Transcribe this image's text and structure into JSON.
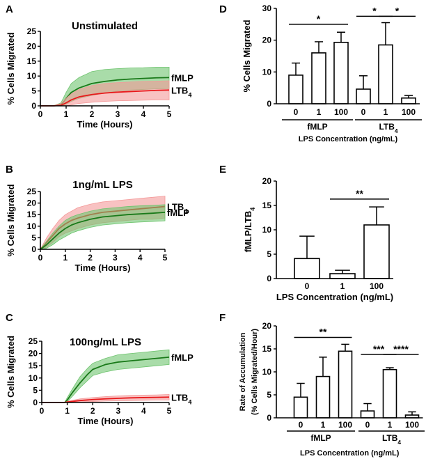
{
  "panel_labels": [
    "A",
    "B",
    "C",
    "D",
    "E",
    "F"
  ],
  "colors": {
    "fMLP_line": "#1a7a1a",
    "fMLP_band": "#6fc46f",
    "LTB4_line": "#e8191b",
    "LTB4_band": "#f49a9a",
    "bar_fill": "#ffffff",
    "ink": "#000000"
  },
  "chart_data": [
    {
      "id": "A",
      "type": "line",
      "title": "Unstimulated",
      "xlabel": "Time (Hours)",
      "ylabel": "% Cells Migrated",
      "xlim": [
        0,
        5
      ],
      "ylim": [
        0,
        25
      ],
      "xticks": [
        "0",
        "1",
        "2",
        "3",
        "4",
        "5"
      ],
      "yticks": [
        "0",
        "5",
        "10",
        "15",
        "20",
        "25"
      ],
      "series": [
        {
          "name": "fMLP",
          "label_main": "fMLP",
          "label_sub": "",
          "x": [
            0,
            0.5,
            0.8,
            1.0,
            1.2,
            1.5,
            2.0,
            2.5,
            3.0,
            3.5,
            4.0,
            4.5,
            5.0
          ],
          "mean": [
            0,
            0,
            0.3,
            2.5,
            4.5,
            6.0,
            7.5,
            8.2,
            8.7,
            9.0,
            9.2,
            9.4,
            9.5
          ],
          "lower": [
            0,
            0,
            0,
            0.5,
            1.5,
            2.5,
            3.5,
            4.3,
            5.0,
            5.3,
            5.5,
            5.7,
            5.8
          ],
          "upper": [
            0,
            0,
            1.0,
            4.5,
            7.5,
            9.5,
            11.5,
            12.2,
            12.5,
            12.7,
            12.8,
            13.0,
            13.0
          ]
        },
        {
          "name": "LTB4",
          "label_main": "LTB",
          "label_sub": "4",
          "x": [
            0,
            0.5,
            0.8,
            1.0,
            1.2,
            1.5,
            2.0,
            2.5,
            3.0,
            3.5,
            4.0,
            4.5,
            5.0
          ],
          "mean": [
            0,
            0,
            0.2,
            1.0,
            2.0,
            3.0,
            3.8,
            4.3,
            4.6,
            4.8,
            5.0,
            5.2,
            5.3
          ],
          "lower": [
            0,
            0,
            0,
            0,
            0.3,
            0.8,
            1.2,
            1.5,
            1.7,
            1.8,
            1.9,
            2.0,
            2.0
          ],
          "upper": [
            0,
            0,
            0.8,
            2.5,
            4.0,
            5.5,
            6.8,
            7.5,
            7.8,
            8.0,
            8.2,
            8.3,
            8.4
          ]
        }
      ]
    },
    {
      "id": "B",
      "type": "line",
      "title": "1ng/mL LPS",
      "xlabel": "Time (Hours)",
      "ylabel": "% Cells Migrated",
      "xlim": [
        0,
        5
      ],
      "ylim": [
        0,
        25
      ],
      "xticks": [
        "0",
        "1",
        "2",
        "3",
        "4",
        "5"
      ],
      "yticks": [
        "0",
        "5",
        "10",
        "15",
        "20",
        "25"
      ],
      "series": [
        {
          "name": "LTB4",
          "label_main": "LTB",
          "label_sub": "4",
          "x": [
            0,
            0.25,
            0.5,
            0.75,
            1.0,
            1.25,
            1.5,
            2.0,
            2.5,
            3.0,
            3.5,
            4.0,
            4.5,
            5.0
          ],
          "mean": [
            0,
            3.0,
            6.0,
            9.0,
            11.0,
            12.5,
            13.5,
            15.0,
            16.0,
            16.5,
            17.0,
            17.5,
            18.0,
            18.5
          ],
          "lower": [
            0,
            1.0,
            3.0,
            5.5,
            7.0,
            8.0,
            9.0,
            10.5,
            11.5,
            12.0,
            12.5,
            13.0,
            13.0,
            13.5
          ],
          "upper": [
            0,
            5.0,
            9.0,
            12.5,
            15.0,
            16.5,
            18.0,
            19.5,
            20.5,
            21.0,
            21.5,
            22.0,
            22.5,
            23.0
          ]
        },
        {
          "name": "fMLP",
          "label_main": "fMLP",
          "label_sub": "",
          "x": [
            0,
            0.25,
            0.5,
            0.75,
            1.0,
            1.25,
            1.5,
            2.0,
            2.5,
            3.0,
            3.5,
            4.0,
            4.5,
            5.0
          ],
          "mean": [
            0,
            2.0,
            4.5,
            7.0,
            9.0,
            10.5,
            11.5,
            13.0,
            14.0,
            14.5,
            15.0,
            15.3,
            15.6,
            16.0
          ],
          "lower": [
            0,
            0.5,
            2.0,
            4.0,
            5.5,
            7.0,
            8.0,
            9.5,
            10.5,
            11.0,
            11.5,
            11.8,
            12.0,
            12.3
          ],
          "upper": [
            0,
            3.5,
            7.0,
            10.0,
            12.5,
            14.0,
            15.0,
            16.5,
            17.5,
            18.0,
            18.5,
            18.8,
            19.0,
            19.3
          ]
        }
      ]
    },
    {
      "id": "C",
      "type": "line",
      "title": "100ng/mL LPS",
      "xlabel": "Time (Hours)",
      "ylabel": "% Cells Migrated",
      "xlim": [
        0,
        5
      ],
      "ylim": [
        0,
        25
      ],
      "xticks": [
        "0",
        "1",
        "2",
        "3",
        "4",
        "5"
      ],
      "yticks": [
        "0",
        "5",
        "10",
        "15",
        "20",
        "25"
      ],
      "series": [
        {
          "name": "fMLP",
          "label_main": "fMLP",
          "label_sub": "",
          "x": [
            0,
            0.5,
            0.9,
            1.0,
            1.2,
            1.5,
            1.8,
            2.0,
            2.5,
            3.0,
            3.5,
            4.0,
            4.5,
            5.0
          ],
          "mean": [
            0,
            0,
            0,
            1.0,
            4.0,
            8.0,
            11.5,
            13.5,
            15.5,
            16.5,
            17.0,
            17.5,
            18.0,
            18.5
          ],
          "lower": [
            0,
            0,
            0,
            0.3,
            2.5,
            6.0,
            9.0,
            11.0,
            12.5,
            13.5,
            14.0,
            14.5,
            15.0,
            15.5
          ],
          "upper": [
            0,
            0,
            0,
            2.0,
            5.5,
            10.5,
            14.0,
            16.0,
            18.0,
            19.5,
            20.0,
            20.5,
            21.0,
            21.5
          ]
        },
        {
          "name": "LTB4",
          "label_main": "LTB",
          "label_sub": "4",
          "x": [
            0,
            0.5,
            0.9,
            1.0,
            1.5,
            2.0,
            2.5,
            3.0,
            3.5,
            4.0,
            4.5,
            5.0
          ],
          "mean": [
            0,
            0,
            0,
            0.2,
            0.8,
            1.2,
            1.5,
            1.7,
            1.9,
            2.0,
            2.1,
            2.2
          ],
          "lower": [
            0,
            0,
            0,
            0,
            0.2,
            0.4,
            0.6,
            0.7,
            0.8,
            0.9,
            1.0,
            1.0
          ],
          "upper": [
            0,
            0,
            0,
            0.5,
            1.5,
            2.0,
            2.4,
            2.7,
            2.9,
            3.0,
            3.1,
            3.3
          ]
        }
      ]
    },
    {
      "id": "D",
      "type": "bar",
      "ylabel": "% Cells Migrated",
      "ylim": [
        0,
        30
      ],
      "yticks": [
        "0",
        "10",
        "20",
        "30"
      ],
      "bars": [
        {
          "group": "fMLP",
          "category": "0",
          "value": 9,
          "err": 3.8
        },
        {
          "group": "fMLP",
          "category": "1",
          "value": 16,
          "err": 3.5
        },
        {
          "group": "fMLP",
          "category": "100",
          "value": 19.3,
          "err": 3.2
        },
        {
          "group": "LTB4",
          "category": "0",
          "value": 4.6,
          "err": 4.2
        },
        {
          "group": "LTB4",
          "category": "1",
          "value": 18.5,
          "err": 7.0
        },
        {
          "group": "LTB4",
          "category": "100",
          "value": 1.8,
          "err": 0.8
        }
      ],
      "groups": [
        {
          "label_main": "fMLP",
          "label_sub": ""
        },
        {
          "label_main": "LTB",
          "label_sub": "4"
        }
      ],
      "xlabel": "LPS Concentration (ng/mL)",
      "significance": [
        {
          "from": 0,
          "to": 2,
          "label": "*",
          "y": 25
        },
        {
          "from": 3,
          "to": 4,
          "label": "*",
          "y": 27.5
        },
        {
          "from": 4,
          "to": 5,
          "label": "*",
          "y": 27.5
        }
      ]
    },
    {
      "id": "E",
      "type": "bar",
      "ylabel": "fMLP/LTB",
      "ylabel_sub": "4",
      "ylim": [
        0,
        20
      ],
      "yticks": [
        "0",
        "5",
        "10",
        "15",
        "20"
      ],
      "bars": [
        {
          "category": "0",
          "value": 4.1,
          "err": 4.6
        },
        {
          "category": "1",
          "value": 1.0,
          "err": 0.7
        },
        {
          "category": "100",
          "value": 11.0,
          "err": 3.7
        }
      ],
      "xlabel": "LPS Concentration (ng/mL)",
      "significance": [
        {
          "from": 1,
          "to": 2,
          "label": "**",
          "y": 16.3
        }
      ]
    },
    {
      "id": "F",
      "type": "bar",
      "ylabel": "Rate of Accumulation",
      "ylabel2": "(% Cells Migrated/Hour)",
      "ylim": [
        0,
        20
      ],
      "yticks": [
        "0",
        "5",
        "10",
        "15",
        "20"
      ],
      "bars": [
        {
          "group": "fMLP",
          "category": "0",
          "value": 4.5,
          "err": 3.0
        },
        {
          "group": "fMLP",
          "category": "1",
          "value": 9.0,
          "err": 4.2
        },
        {
          "group": "fMLP",
          "category": "100",
          "value": 14.5,
          "err": 1.5
        },
        {
          "group": "LTB4",
          "category": "0",
          "value": 1.5,
          "err": 1.6
        },
        {
          "group": "LTB4",
          "category": "1",
          "value": 10.5,
          "err": 0.4
        },
        {
          "group": "LTB4",
          "category": "100",
          "value": 0.6,
          "err": 0.7
        }
      ],
      "groups": [
        {
          "label_main": "fMLP",
          "label_sub": ""
        },
        {
          "label_main": "LTB",
          "label_sub": "4"
        }
      ],
      "xlabel": "LPS Concentration (ng/mL)",
      "significance": [
        {
          "from": 0,
          "to": 2,
          "label": "**",
          "y": 17.5
        },
        {
          "from": 3,
          "to": 4,
          "label": "***",
          "y": 13.8
        },
        {
          "from": 4,
          "to": 5,
          "label": "****",
          "y": 13.8
        }
      ]
    }
  ]
}
